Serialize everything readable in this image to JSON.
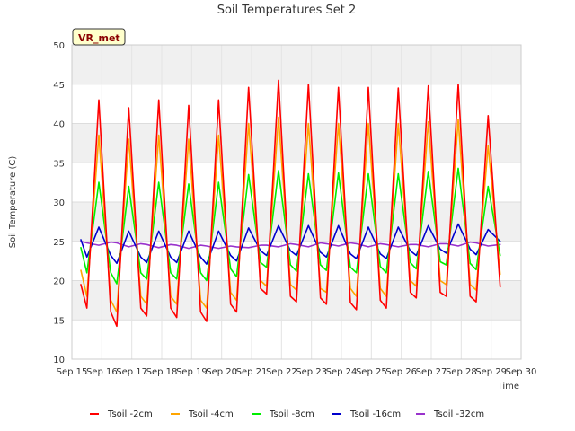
{
  "chart_data": {
    "type": "line",
    "title": "Soil Temperatures Set 2",
    "xlabel": "Time",
    "ylabel": "Soil Temperature (C)",
    "ylim": [
      10,
      50
    ],
    "xlim": [
      15,
      30
    ],
    "yticks": [
      10,
      15,
      20,
      25,
      30,
      35,
      40,
      45,
      50
    ],
    "xticks": [
      "Sep 15",
      "Sep 16",
      "Sep 17",
      "Sep 18",
      "Sep 19",
      "Sep 20",
      "Sep 21",
      "Sep 22",
      "Sep 23",
      "Sep 24",
      "Sep 25",
      "Sep 26",
      "Sep 27",
      "Sep 28",
      "Sep 29",
      "Sep 30"
    ],
    "grid": true,
    "legend_position": "bottom",
    "badge": "VR_met",
    "x": [
      15.3,
      15.5,
      15.9,
      16.3,
      16.5,
      16.9,
      17.3,
      17.5,
      17.9,
      18.3,
      18.5,
      18.9,
      19.3,
      19.5,
      19.9,
      20.3,
      20.5,
      20.9,
      21.3,
      21.5,
      21.9,
      22.3,
      22.5,
      22.9,
      23.3,
      23.5,
      23.9,
      24.3,
      24.5,
      24.9,
      25.3,
      25.5,
      25.9,
      26.3,
      26.5,
      26.9,
      27.3,
      27.5,
      27.9,
      28.3,
      28.5,
      28.9,
      29.3
    ],
    "series": [
      {
        "name": "Tsoil -2cm",
        "color": "#ff0000",
        "values": [
          19.5,
          16.5,
          43.0,
          16.0,
          14.2,
          42.0,
          16.5,
          15.5,
          43.0,
          16.5,
          15.3,
          42.3,
          16.0,
          14.8,
          43.0,
          17.0,
          16.0,
          44.6,
          19.0,
          18.3,
          45.5,
          18.0,
          17.3,
          45.0,
          17.8,
          17.0,
          44.6,
          17.2,
          16.3,
          44.6,
          17.5,
          16.5,
          44.5,
          18.5,
          17.8,
          44.8,
          18.5,
          18.0,
          45.0,
          18.0,
          17.3,
          41.0,
          19.2
        ]
      },
      {
        "name": "Tsoil -4cm",
        "color": "#ffa500",
        "values": [
          21.3,
          18.0,
          38.5,
          17.5,
          16.0,
          38.0,
          18.0,
          17.0,
          38.5,
          18.0,
          17.0,
          38.0,
          17.5,
          16.5,
          38.5,
          18.5,
          17.5,
          40.0,
          20.0,
          19.3,
          40.8,
          19.5,
          18.8,
          40.0,
          19.0,
          18.5,
          40.0,
          19.0,
          18.0,
          40.0,
          19.0,
          18.0,
          40.0,
          20.0,
          19.3,
          40.2,
          20.0,
          19.5,
          40.5,
          19.5,
          18.8,
          37.2,
          20.8
        ]
      },
      {
        "name": "Tsoil -8cm",
        "color": "#00ee00",
        "values": [
          24.2,
          21.0,
          32.5,
          21.0,
          19.6,
          32.0,
          21.0,
          20.2,
          32.5,
          21.0,
          20.2,
          32.3,
          21.0,
          20.0,
          32.5,
          21.5,
          20.5,
          33.5,
          22.3,
          21.7,
          34.0,
          22.0,
          21.2,
          33.6,
          22.0,
          21.3,
          33.7,
          21.7,
          21.0,
          33.6,
          21.8,
          21.0,
          33.6,
          22.3,
          21.5,
          33.9,
          22.4,
          22.0,
          34.3,
          22.2,
          21.4,
          32.0,
          23.2
        ]
      },
      {
        "name": "Tsoil -16cm",
        "color": "#0000cc",
        "values": [
          25.2,
          23.0,
          26.8,
          23.2,
          22.2,
          26.3,
          23.0,
          22.3,
          26.3,
          23.0,
          22.3,
          26.3,
          23.0,
          22.1,
          26.3,
          23.2,
          22.5,
          26.7,
          23.8,
          23.2,
          27.0,
          23.8,
          23.2,
          27.0,
          23.6,
          23.0,
          27.0,
          23.4,
          22.8,
          26.8,
          23.4,
          22.8,
          26.8,
          23.8,
          23.2,
          27.0,
          24.0,
          23.5,
          27.2,
          24.0,
          23.3,
          26.5,
          25.0
        ]
      },
      {
        "name": "Tsoil -32cm",
        "color": "#9932cc",
        "values": [
          25.0,
          24.8,
          24.5,
          24.9,
          24.8,
          24.3,
          24.7,
          24.6,
          24.2,
          24.6,
          24.5,
          24.1,
          24.5,
          24.4,
          24.1,
          24.4,
          24.3,
          24.2,
          24.5,
          24.5,
          24.3,
          24.7,
          24.6,
          24.3,
          24.8,
          24.7,
          24.4,
          24.8,
          24.7,
          24.3,
          24.7,
          24.6,
          24.3,
          24.6,
          24.6,
          24.3,
          24.7,
          24.7,
          24.4,
          24.9,
          24.8,
          24.4,
          24.6
        ]
      }
    ]
  }
}
